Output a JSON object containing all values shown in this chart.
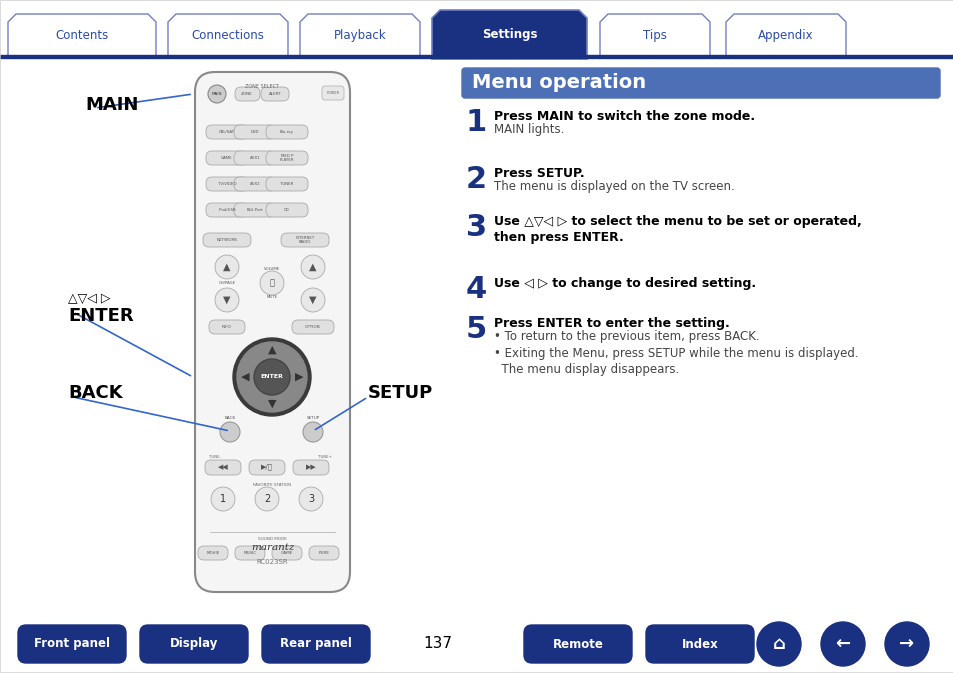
{
  "title": "Menu operation",
  "title_bg": "#4D6FB5",
  "title_fg": "#FFFFFF",
  "page_bg": "#FFFFFF",
  "tabs": [
    "Contents",
    "Connections",
    "Playback",
    "Settings",
    "Tips",
    "Appendix"
  ],
  "active_tab": 3,
  "tab_bg_active": "#1A3080",
  "tab_bg_inactive": "#FFFFFF",
  "tab_fg_active": "#FFFFFF",
  "tab_fg_inactive": "#2B4CA8",
  "tab_border": "#7080C0",
  "tab_line_color": "#1A3080",
  "steps": [
    {
      "num": "1",
      "bold": "Press MAIN to switch the zone mode.",
      "normal": "MAIN lights."
    },
    {
      "num": "2",
      "bold": "Press SETUP.",
      "normal": "The menu is displayed on the TV screen."
    },
    {
      "num": "3",
      "bold": "Use △▽◁ ▷ to select the menu to be set or operated,\nthen press ENTER.",
      "normal": ""
    },
    {
      "num": "4",
      "bold": "Use ◁ ▷ to change to desired setting.",
      "normal": ""
    },
    {
      "num": "5",
      "bold": "Press ENTER to enter the setting.",
      "normal": "• To return to the previous item, press BACK.\n• Exiting the Menu, press SETUP while the menu is displayed.\n  The menu display disappears."
    }
  ],
  "step_num_color": "#1A3080",
  "step_bold_color": "#000000",
  "step_normal_color": "#444444",
  "page_number": "137",
  "bottom_btn_bg": "#1A3080",
  "bottom_btn_fg": "#FFFFFF",
  "label_color": "#000000",
  "arrow_color": "#3366CC"
}
